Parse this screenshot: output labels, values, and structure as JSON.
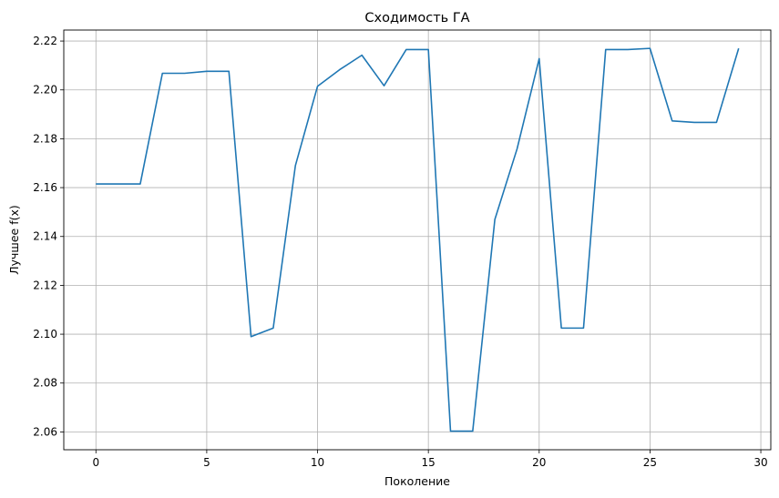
{
  "chart_data": {
    "type": "line",
    "title": "Сходимость ГА",
    "xlabel": "Поколение",
    "ylabel": "Лучшее f(x)",
    "xlim": [
      -1.45,
      30.45
    ],
    "ylim": [
      2.0527,
      2.2245
    ],
    "grid": true,
    "color": "#1f77b4",
    "xticks": [
      0,
      5,
      10,
      15,
      20,
      25,
      30
    ],
    "yticks": [
      2.06,
      2.08,
      2.1,
      2.12,
      2.14,
      2.16,
      2.18,
      2.2,
      2.22
    ],
    "x": [
      0,
      1,
      2,
      3,
      4,
      5,
      6,
      7,
      8,
      9,
      10,
      11,
      12,
      13,
      14,
      15,
      16,
      17,
      18,
      19,
      20,
      21,
      22,
      23,
      24,
      25,
      26,
      27,
      28,
      29
    ],
    "y": [
      2.1615,
      2.1615,
      2.1615,
      2.2068,
      2.2068,
      2.2076,
      2.2076,
      2.099,
      2.1025,
      2.169,
      2.2015,
      2.2083,
      2.2142,
      2.2017,
      2.2165,
      2.2165,
      2.0603,
      2.0603,
      2.147,
      2.1758,
      2.2128,
      2.1025,
      2.1025,
      2.2165,
      2.2165,
      2.217,
      2.1873,
      2.1867,
      2.1867,
      2.217
    ]
  }
}
